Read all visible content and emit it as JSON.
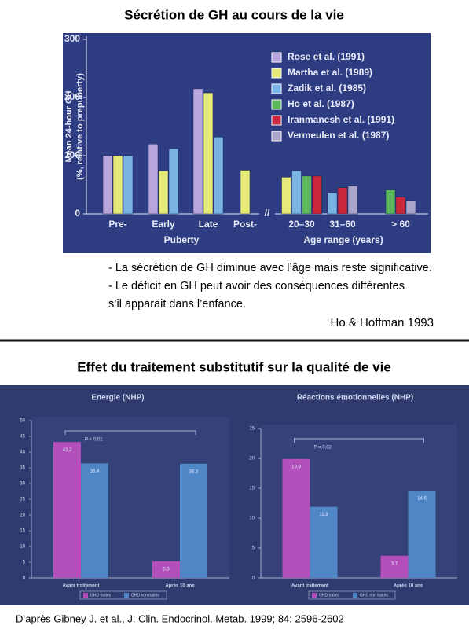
{
  "title": "Sécrétion de GH au cours de la vie",
  "notes": [
    "- La sécrétion de GH diminue avec l’âge mais reste significative.",
    "- Le déficit en GH peut avoir des conséquences différentes",
    "s’il apparait dans l’enfance."
  ],
  "source": "Ho & Hoffman 1993",
  "section_title": "Effet du traitement substitutif sur la qualité de vie",
  "footer": "D’après Gibney J. et al., J. Clin. Endocrinol. Metab. 1999; 84: 2596-2602",
  "chart_data": [
    {
      "type": "bar",
      "ylabel": [
        "Mean 24-hour GH",
        "(%, relative to prepuberty)"
      ],
      "categories": [
        "Pre-",
        "Early",
        "Late",
        "Post-",
        "20–30",
        "31–60",
        "> 60"
      ],
      "group_labels": [
        "Puberty",
        "Age range (years)"
      ],
      "ylim": [
        0,
        300
      ],
      "yticks": [
        0,
        100,
        200,
        300
      ],
      "series": [
        {
          "name": "Rose et al. (1991)",
          "color": "#b9a6dd",
          "values": [
            100,
            120,
            215,
            null,
            null,
            null,
            null
          ]
        },
        {
          "name": "Martha et al. (1989)",
          "color": "#e6ea78",
          "values": [
            100,
            74,
            208,
            75,
            63,
            null,
            null
          ]
        },
        {
          "name": "Zadik et al. (1985)",
          "color": "#7ab4e2",
          "values": [
            100,
            112,
            132,
            null,
            74,
            36,
            null
          ]
        },
        {
          "name": "Ho et al. (1987)",
          "color": "#5cb85c",
          "values": [
            null,
            null,
            null,
            null,
            65,
            null,
            41
          ]
        },
        {
          "name": "Iranmanesh et al. (1991)",
          "color": "#c9283a",
          "values": [
            null,
            null,
            null,
            null,
            65,
            45,
            29
          ]
        },
        {
          "name": "Vermeulen et al. (1987)",
          "color": "#aaa6c9",
          "values": [
            null,
            null,
            null,
            null,
            null,
            48,
            22
          ]
        }
      ]
    },
    {
      "type": "bar",
      "title": "Energie (NHP)",
      "annotation": "P < 0,02",
      "categories": [
        "Avant traitement",
        "Après 10 ans"
      ],
      "ylim": [
        0,
        50
      ],
      "yticks": [
        0,
        5,
        10,
        15,
        20,
        25,
        30,
        35,
        40,
        45,
        50
      ],
      "series": [
        {
          "name": "GHD traités",
          "color": "#b24fba",
          "values": [
            43.2,
            5.3
          ],
          "value_labels": [
            "43,2",
            "5,3"
          ]
        },
        {
          "name": "GHD non traités",
          "color": "#4f86c6",
          "values": [
            36.4,
            36.3
          ],
          "value_labels": [
            "36,4",
            "36,3"
          ]
        }
      ]
    },
    {
      "type": "bar",
      "title": "Réactions émotionnelles (NHP)",
      "annotation": "P = 0,02",
      "categories": [
        "Avant traitement",
        "Après 10 ans"
      ],
      "ylim": [
        0,
        25
      ],
      "yticks": [
        0,
        5,
        10,
        15,
        20,
        25
      ],
      "series": [
        {
          "name": "GHD traités",
          "color": "#b24fba",
          "values": [
            19.9,
            3.7
          ],
          "value_labels": [
            "19,9",
            "3,7"
          ]
        },
        {
          "name": "GHD non traités",
          "color": "#4f86c6",
          "values": [
            11.9,
            14.6
          ],
          "value_labels": [
            "11,9",
            "14,6"
          ]
        }
      ]
    }
  ]
}
